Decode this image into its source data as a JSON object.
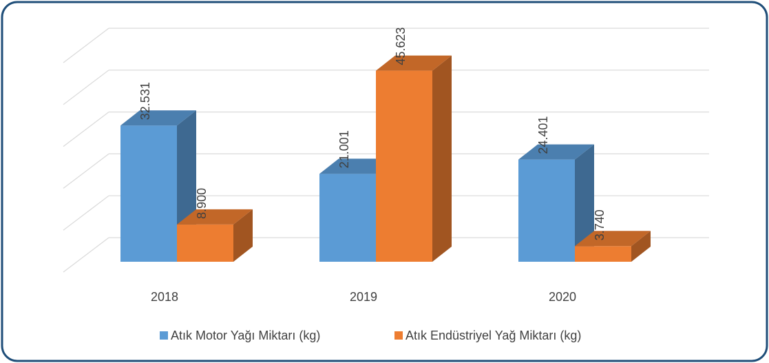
{
  "chart_data": {
    "type": "bar3d",
    "categories": [
      "2018",
      "2019",
      "2020"
    ],
    "series": [
      {
        "name": "Atık Motor Yağı Miktarı (kg)",
        "color": "#5b9bd5",
        "values": [
          32531,
          21001,
          24401
        ],
        "value_labels": [
          "32.531",
          "21.001",
          "24.401"
        ]
      },
      {
        "name": "Atık Endüstriyel Yağ Miktarı (kg)",
        "color": "#ed7d31",
        "values": [
          8900,
          45623,
          3740
        ],
        "value_labels": [
          "8.900",
          "45.623",
          "3.740"
        ]
      }
    ],
    "ylim": [
      0,
      50000
    ],
    "yticks": [
      0,
      10000,
      20000,
      30000,
      40000,
      50000
    ],
    "grid": true,
    "legend": "bottom"
  }
}
